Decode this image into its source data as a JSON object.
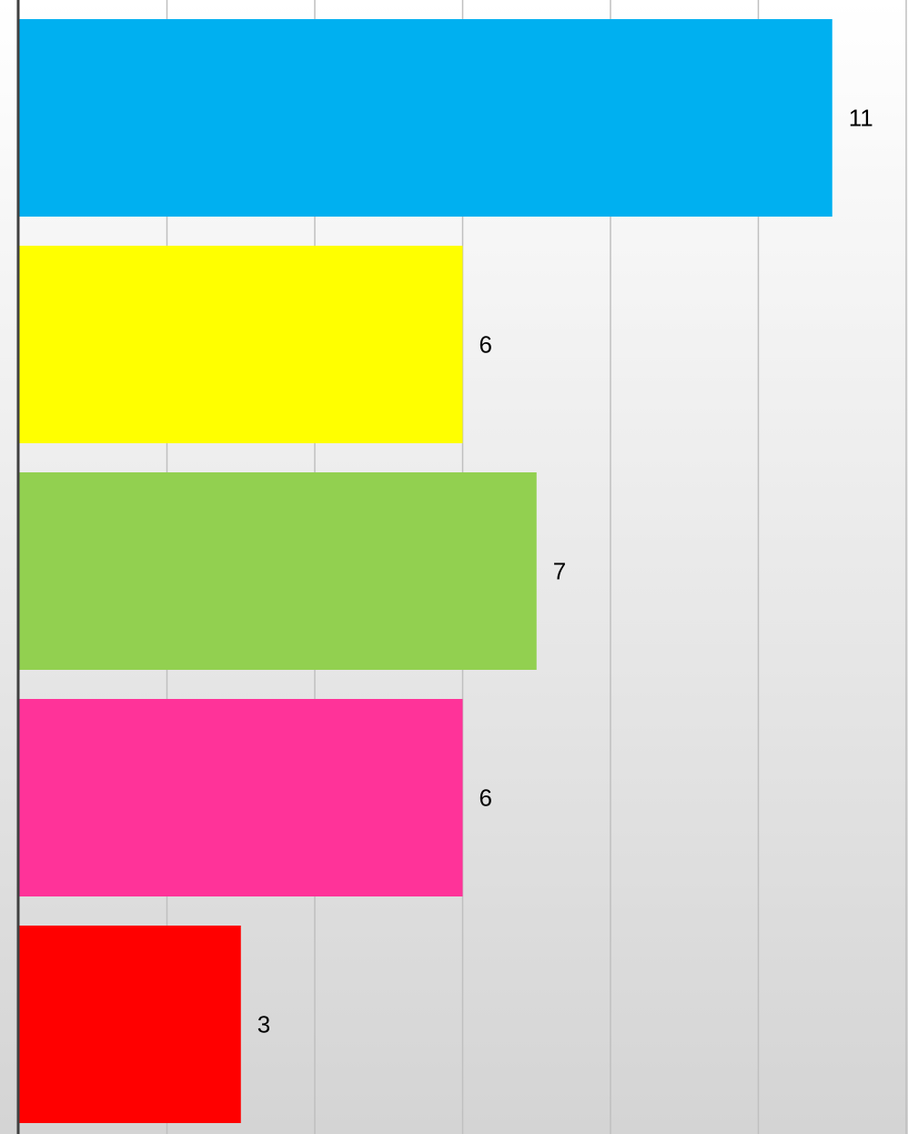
{
  "chart_data": {
    "type": "barh",
    "categories": [
      null,
      null,
      null,
      null,
      null
    ],
    "values": [
      11,
      6,
      7,
      6,
      3
    ],
    "colors": [
      "#00b0f0",
      "#ffff00",
      "#92d050",
      "#ff3399",
      "#ff0000"
    ],
    "xlim": [
      0,
      12
    ],
    "xticks": [
      0,
      2,
      4,
      6,
      8,
      10,
      12
    ],
    "grid": true
  }
}
